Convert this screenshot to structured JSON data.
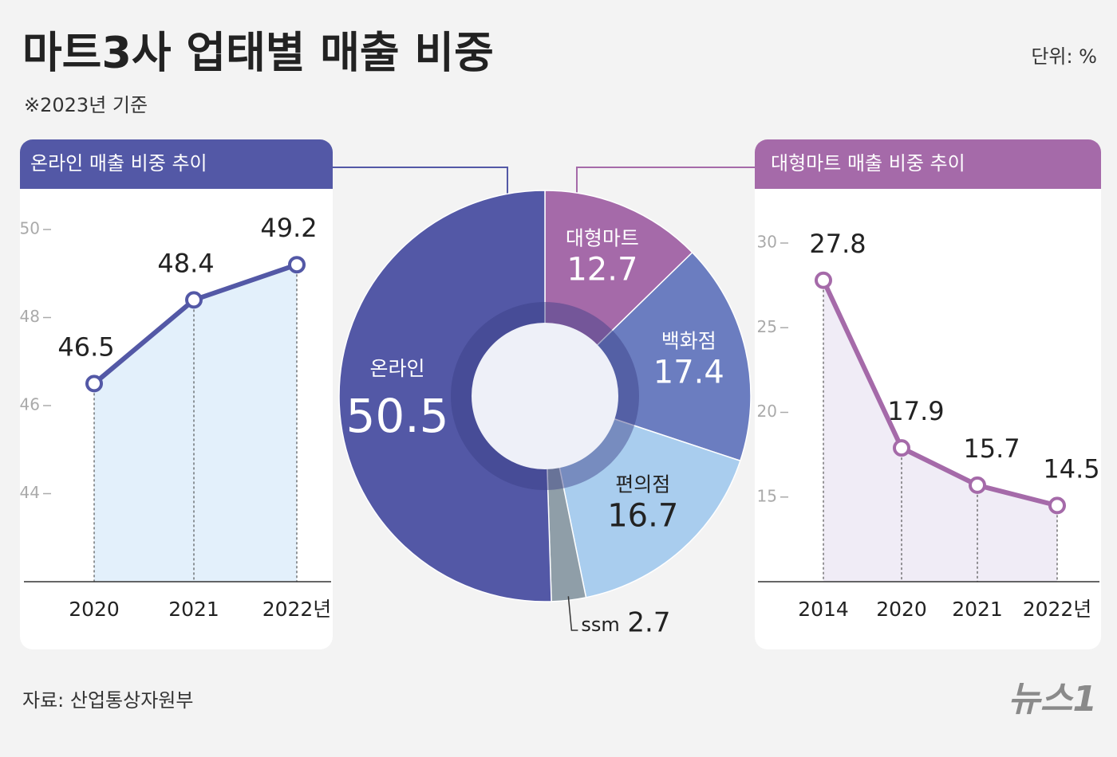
{
  "title": "마트3사 업태별 매출 비중",
  "subtitle": "※2023년 기준",
  "unit": "단위: %",
  "source": "자료: 산업통상자원부",
  "logo": "뉴스1",
  "chart_data": [
    {
      "type": "line",
      "title": "온라인 매출 비중 추이",
      "categories": [
        "2020",
        "2021",
        "2022년"
      ],
      "values": [
        46.5,
        48.4,
        49.2
      ],
      "color": "#5358a6",
      "area_color": "#e3f0fb",
      "ylim": [
        42,
        50
      ],
      "yticks": [
        44,
        46,
        48,
        50
      ]
    },
    {
      "type": "pie",
      "categories": [
        "대형마트",
        "백화점",
        "편의점",
        "ssm",
        "온라인"
      ],
      "values": [
        12.7,
        17.4,
        16.7,
        2.7,
        50.5
      ],
      "colors": [
        "#a56aa9",
        "#6b7dc0",
        "#a9cdee",
        "#8f9ea8",
        "#5358a6"
      ]
    },
    {
      "type": "line",
      "title": "대형마트 매출 비중 추이",
      "categories": [
        "2014",
        "2020",
        "2021",
        "2022년"
      ],
      "values": [
        27.8,
        17.9,
        15.7,
        14.5
      ],
      "color": "#a56aa9",
      "area_color": "#f0ecf6",
      "ylim": [
        10,
        30
      ],
      "yticks": [
        15,
        20,
        25,
        30
      ]
    }
  ]
}
